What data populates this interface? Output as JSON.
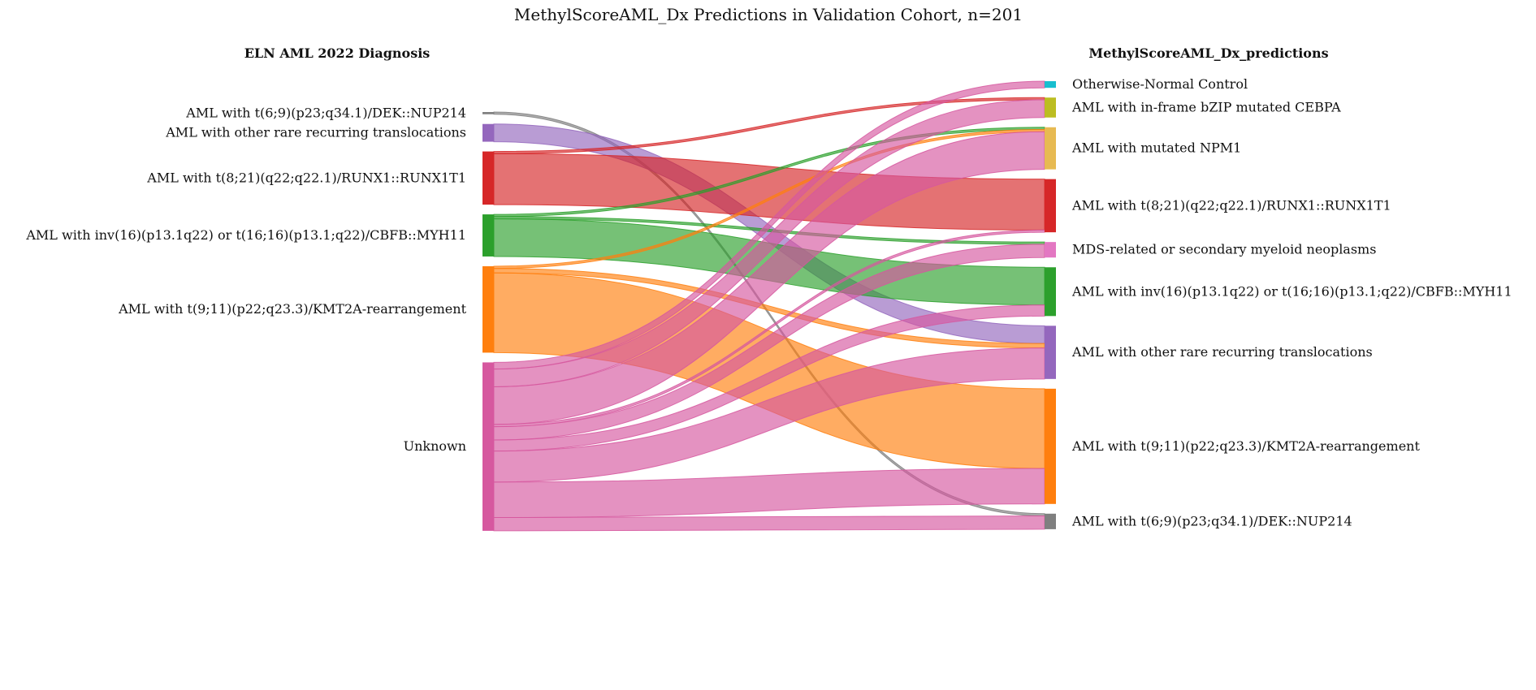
{
  "chart_data": {
    "type": "sankey",
    "title": "MethylScoreAML_Dx Predictions in Validation Cohort, n=201",
    "left_title": "ELN AML 2022 Diagnosis",
    "right_title": "MethylScoreAML_Dx_predictions",
    "left_nodes": [
      {
        "id": "L_dek",
        "label": "AML with t(6;9)(p23;q34.1)/DEK::NUP214",
        "color": "#7f7f7f"
      },
      {
        "id": "L_rare",
        "label": "AML with other rare recurring translocations",
        "color": "#9467bd"
      },
      {
        "id": "L_runx",
        "label": "AML with t(8;21)(q22;q22.1)/RUNX1::RUNX1T1",
        "color": "#d62728"
      },
      {
        "id": "L_cbfb",
        "label": "AML with inv(16)(p13.1q22) or t(16;16)(p13.1;q22)/CBFB::MYH11",
        "color": "#2ca02c"
      },
      {
        "id": "L_kmt2a",
        "label": "AML with t(9;11)(p22;q23.3)/KMT2A-rearrangement",
        "color": "#ff7f0e"
      },
      {
        "id": "L_unknown",
        "label": "Unknown",
        "color": "#d6589f"
      }
    ],
    "right_nodes": [
      {
        "id": "R_control",
        "label": "Otherwise-Normal Control",
        "color": "#17becf"
      },
      {
        "id": "R_cebpa",
        "label": "AML with in-frame bZIP mutated CEBPA",
        "color": "#bcbd22"
      },
      {
        "id": "R_npm1",
        "label": "AML with mutated NPM1",
        "color": "#e7ba52"
      },
      {
        "id": "R_runx",
        "label": "AML with t(8;21)(q22;q22.1)/RUNX1::RUNX1T1",
        "color": "#d62728"
      },
      {
        "id": "R_mds",
        "label": "MDS-related or secondary myeloid neoplasms",
        "color": "#e377c2"
      },
      {
        "id": "R_cbfb",
        "label": "AML with inv(16)(p13.1q22) or t(16;16)(p13.1;q22)/CBFB::MYH11",
        "color": "#2ca02c"
      },
      {
        "id": "R_rare",
        "label": "AML with other rare recurring translocations",
        "color": "#9467bd"
      },
      {
        "id": "R_kmt2a",
        "label": "AML with t(9;11)(p22;q23.3)/KMT2A-rearrangement",
        "color": "#ff7f0e"
      },
      {
        "id": "R_dek",
        "label": "AML with t(6;9)(p23;q34.1)/DEK::NUP214",
        "color": "#7f7f7f"
      }
    ],
    "flows": [
      {
        "source": "L_dek",
        "target": "R_dek",
        "value": 1
      },
      {
        "source": "L_rare",
        "target": "R_rare",
        "value": 8
      },
      {
        "source": "L_runx",
        "target": "R_cebpa",
        "value": 1
      },
      {
        "source": "L_runx",
        "target": "R_runx",
        "value": 23
      },
      {
        "source": "L_cbfb",
        "target": "R_npm1",
        "value": 1
      },
      {
        "source": "L_cbfb",
        "target": "R_mds",
        "value": 1
      },
      {
        "source": "L_cbfb",
        "target": "R_cbfb",
        "value": 17
      },
      {
        "source": "L_kmt2a",
        "target": "R_npm1",
        "value": 1
      },
      {
        "source": "L_kmt2a",
        "target": "R_rare",
        "value": 2
      },
      {
        "source": "L_kmt2a",
        "target": "R_kmt2a",
        "value": 36
      },
      {
        "source": "L_unknown",
        "target": "R_control",
        "value": 3
      },
      {
        "source": "L_unknown",
        "target": "R_cebpa",
        "value": 8
      },
      {
        "source": "L_unknown",
        "target": "R_npm1",
        "value": 17
      },
      {
        "source": "L_unknown",
        "target": "R_runx",
        "value": 1
      },
      {
        "source": "L_unknown",
        "target": "R_mds",
        "value": 6
      },
      {
        "source": "L_unknown",
        "target": "R_cbfb",
        "value": 5
      },
      {
        "source": "L_unknown",
        "target": "R_rare",
        "value": 14
      },
      {
        "source": "L_unknown",
        "target": "R_kmt2a",
        "value": 16
      },
      {
        "source": "L_unknown",
        "target": "R_dek",
        "value": 6
      }
    ]
  }
}
